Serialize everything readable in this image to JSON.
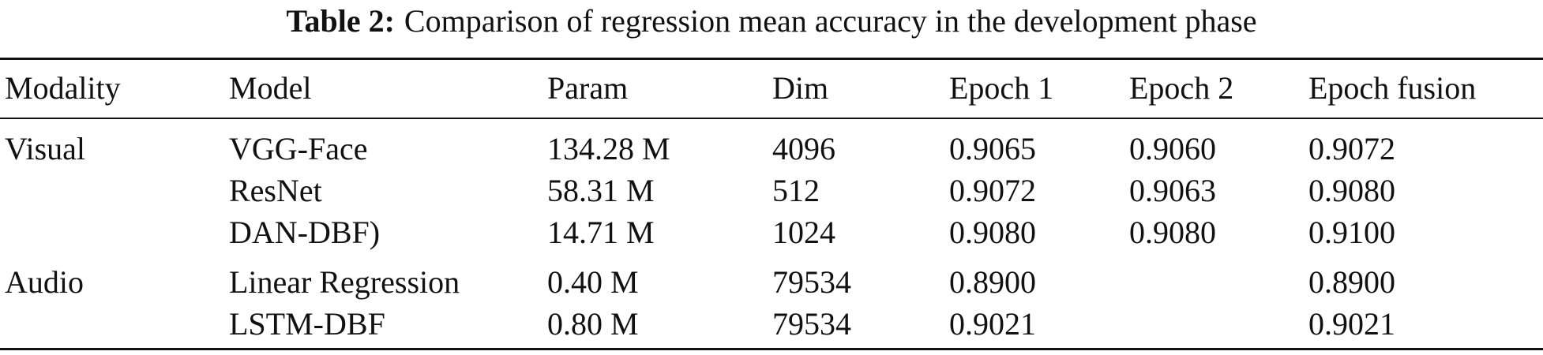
{
  "table": {
    "caption": {
      "label": "Table 2:",
      "text": "Comparison of regression mean accuracy in the development phase"
    },
    "columns": [
      "Modality",
      "Model",
      "Param",
      "Dim",
      "Epoch 1",
      "Epoch 2",
      "Epoch fusion"
    ],
    "rows": [
      [
        "Visual",
        "VGG-Face",
        "134.28 M",
        "4096",
        "0.9065",
        "0.9060",
        "0.9072"
      ],
      [
        null,
        "ResNet",
        "58.31 M",
        "512",
        "0.9072",
        "0.9063",
        "0.9080"
      ],
      [
        null,
        "DAN-DBF)",
        "14.71 M",
        "1024",
        "0.9080",
        "0.9080",
        "0.9100"
      ],
      [
        "Audio",
        "Linear Regression",
        "0.40 M",
        "79534",
        "0.8900",
        null,
        "0.8900"
      ],
      [
        null,
        "LSTM-DBF",
        "0.80 M",
        "79534",
        "0.9021",
        null,
        "0.9021"
      ]
    ]
  }
}
